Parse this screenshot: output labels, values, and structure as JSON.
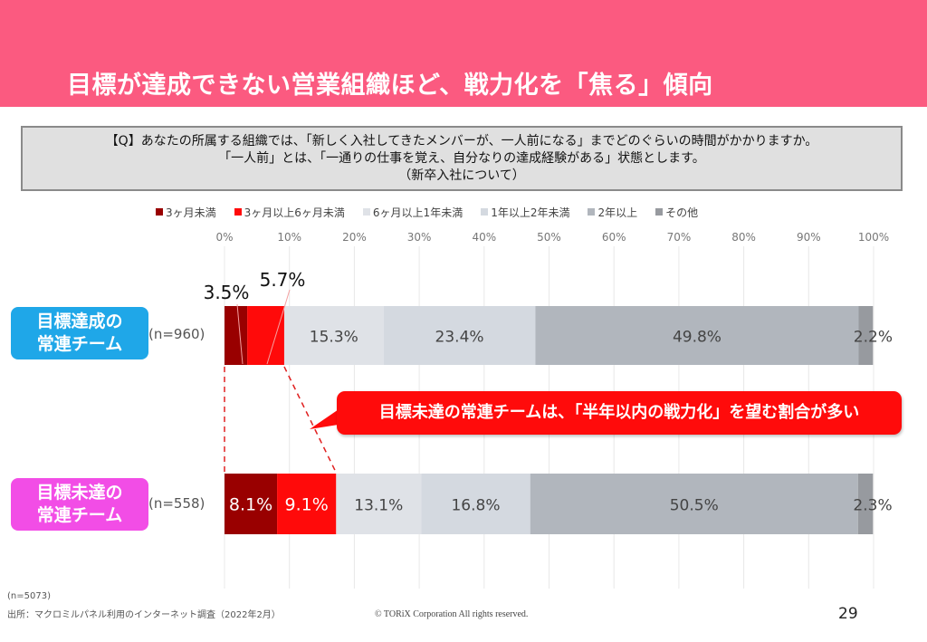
{
  "header": {
    "title": "目標が達成できない営業組織ほど、戦力化を「焦る」傾向",
    "background_color": "#fb5a80"
  },
  "question": {
    "line1": "【Q】あなたの所属する組織では、「新しく入社してきたメンバーが、一人前になる」までどのぐらいの時間がかかりますか。",
    "line2": "「一人前」とは、「一通りの仕事を覚え、自分なりの達成経験がある」状態とします。",
    "line3": "（新卒入社について）"
  },
  "chart_data": {
    "type": "bar",
    "orientation": "horizontal",
    "stacked": true,
    "title": "",
    "xlabel": "",
    "ylabel": "",
    "xlim": [
      0,
      100
    ],
    "x_ticks": [
      "0%",
      "10%",
      "20%",
      "30%",
      "40%",
      "50%",
      "60%",
      "70%",
      "80%",
      "90%",
      "100%"
    ],
    "grid": true,
    "legend_position": "top",
    "categories": [
      {
        "label": "目標達成の常連チーム",
        "n_label": "(n=960)",
        "badge_color": "#1fa7e8"
      },
      {
        "label": "目標未達の常連チーム",
        "n_label": "(n=558)",
        "badge_color": "#f24de6"
      }
    ],
    "series": [
      {
        "name": "3ヶ月未満",
        "color": "#990000",
        "values": [
          3.5,
          8.1
        ],
        "labels": [
          "3.5%",
          "8.1%"
        ]
      },
      {
        "name": "3ヶ月以上6ヶ月未満",
        "color": "#ff0a0a",
        "values": [
          5.7,
          9.1
        ],
        "labels": [
          "5.7%",
          "9.1%"
        ]
      },
      {
        "name": "6ヶ月以上1年未満",
        "color": "#dfe2e7",
        "values": [
          15.3,
          13.1
        ],
        "labels": [
          "15.3%",
          "13.1%"
        ]
      },
      {
        "name": "1年以上2年未満",
        "color": "#d4d9e0",
        "values": [
          23.4,
          16.8
        ],
        "labels": [
          "23.4%",
          "16.8%"
        ]
      },
      {
        "name": "2年以上",
        "color": "#b1b6bd",
        "values": [
          49.8,
          50.5
        ],
        "labels": [
          "49.8%",
          "50.5%"
        ]
      },
      {
        "name": "その他",
        "color": "#979a9f",
        "values": [
          2.2,
          2.3
        ],
        "labels": [
          "2.2%",
          "2.3%"
        ]
      }
    ]
  },
  "callout": {
    "text": "目標未達の常連チームは、「半年以内の戦力化」を望む割合が多い",
    "color": "#ff0b0b"
  },
  "footer": {
    "sample_size": "(n=5073)",
    "source": "出所：マクロミルパネル利用のインターネット調査（2022年2月）",
    "copyright": "© TORiX Corporation All rights reserved.",
    "page_number": "29"
  }
}
